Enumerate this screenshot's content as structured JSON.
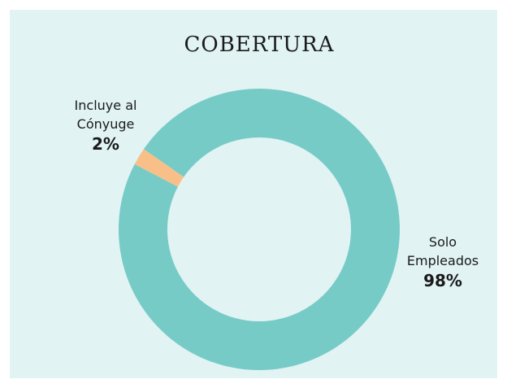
{
  "chart_data": {
    "type": "donut",
    "title": "COBERTURA",
    "categories": [
      "Incluye al Cónyuge",
      "Solo Empleados"
    ],
    "values": [
      2,
      98
    ],
    "value_labels": [
      "2%",
      "98%"
    ],
    "colors": [
      "#f9bf88",
      "#77cbc7"
    ]
  }
}
